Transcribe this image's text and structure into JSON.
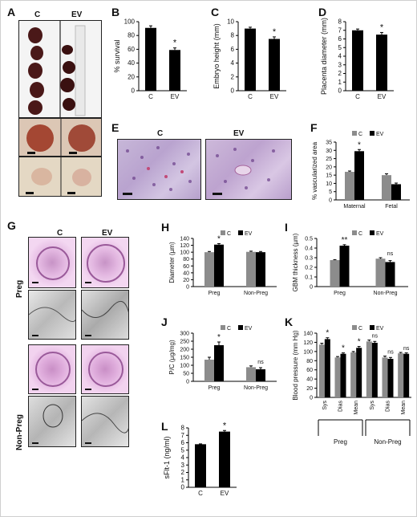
{
  "panels": {
    "A": {
      "label": "A",
      "col_c": "C",
      "col_ev": "EV"
    },
    "B": {
      "label": "B"
    },
    "C": {
      "label": "C"
    },
    "D": {
      "label": "D"
    },
    "E": {
      "label": "E",
      "col_c": "C",
      "col_ev": "EV"
    },
    "F": {
      "label": "F"
    },
    "G": {
      "label": "G",
      "col_c": "C",
      "col_ev": "EV",
      "row_preg": "Preg",
      "row_nonpreg": "Non-Preg"
    },
    "H": {
      "label": "H"
    },
    "I": {
      "label": "I"
    },
    "J": {
      "label": "J"
    },
    "K": {
      "label": "K"
    },
    "L": {
      "label": "L"
    }
  },
  "colors": {
    "C": "#8c8c8c",
    "EV": "#000000",
    "black": "#000000"
  },
  "chart_data": [
    {
      "id": "B",
      "type": "bar",
      "ylabel": "% survival",
      "categories": [
        "C",
        "EV"
      ],
      "values": [
        91,
        59
      ],
      "errors": [
        3,
        3
      ],
      "ylim": [
        0,
        100
      ],
      "yticks": [
        0,
        20,
        40,
        60,
        80,
        100
      ],
      "stars": [
        "",
        "*"
      ],
      "bar_colors": [
        "#000000",
        "#000000"
      ]
    },
    {
      "id": "C",
      "type": "bar",
      "ylabel": "Embryo height (mm)",
      "categories": [
        "C",
        "EV"
      ],
      "values": [
        9.0,
        7.5
      ],
      "errors": [
        0.2,
        0.3
      ],
      "ylim": [
        0,
        10
      ],
      "yticks": [
        0,
        2,
        4,
        6,
        8,
        10
      ],
      "stars": [
        "",
        "*"
      ],
      "bar_colors": [
        "#000000",
        "#000000"
      ]
    },
    {
      "id": "D",
      "type": "bar",
      "ylabel": "Placenta diameter (mm)",
      "categories": [
        "C",
        "EV"
      ],
      "values": [
        7.0,
        6.5
      ],
      "errors": [
        0.15,
        0.25
      ],
      "ylim": [
        0,
        8
      ],
      "yticks": [
        0,
        1,
        2,
        3,
        4,
        5,
        6,
        7,
        8
      ],
      "stars": [
        "",
        "*"
      ],
      "bar_colors": [
        "#000000",
        "#000000"
      ]
    },
    {
      "id": "F",
      "type": "bar",
      "ylabel": "% vascularized area",
      "categories": [
        "Maternal",
        "Fetal"
      ],
      "legend": [
        "C",
        "EV"
      ],
      "series": [
        {
          "name": "C",
          "values": [
            17,
            15
          ],
          "errors": [
            0.5,
            0.8
          ]
        },
        {
          "name": "EV",
          "values": [
            29.5,
            9.5
          ],
          "errors": [
            1,
            0.7
          ]
        }
      ],
      "ylim": [
        0,
        35
      ],
      "yticks": [
        0,
        5,
        10,
        15,
        20,
        25,
        30,
        35
      ],
      "stars": [
        "*",
        ""
      ]
    },
    {
      "id": "H",
      "type": "bar",
      "ylabel": "Diameter (µm)",
      "categories": [
        "Preg",
        "Non-Preg"
      ],
      "legend": [
        "C",
        "EV"
      ],
      "series": [
        {
          "name": "C",
          "values": [
            100,
            101
          ],
          "errors": [
            2,
            2
          ]
        },
        {
          "name": "EV",
          "values": [
            122,
            100
          ],
          "errors": [
            3,
            2
          ]
        }
      ],
      "ylim": [
        0,
        140
      ],
      "yticks": [
        0,
        20,
        40,
        60,
        80,
        100,
        120,
        140
      ],
      "stars": [
        "*",
        ""
      ]
    },
    {
      "id": "I",
      "type": "bar",
      "ylabel": "GBM thickness (µm)",
      "categories": [
        "Preg",
        "Non-Preg"
      ],
      "legend": [
        "C",
        "EV"
      ],
      "series": [
        {
          "name": "C",
          "values": [
            0.275,
            0.29
          ],
          "errors": [
            0.005,
            0.01
          ]
        },
        {
          "name": "EV",
          "values": [
            0.425,
            0.255
          ],
          "errors": [
            0.01,
            0.015
          ]
        }
      ],
      "ylim": [
        0,
        0.5
      ],
      "yticks": [
        0,
        0.1,
        0.2,
        0.3,
        0.4,
        0.5
      ],
      "stars": [
        "**",
        "ns"
      ]
    },
    {
      "id": "J",
      "type": "bar",
      "ylabel": "P/C (µg/mg)",
      "categories": [
        "Preg",
        "Non-Preg"
      ],
      "legend": [
        "C",
        "EV"
      ],
      "series": [
        {
          "name": "C",
          "values": [
            135,
            88
          ],
          "errors": [
            15,
            8
          ]
        },
        {
          "name": "EV",
          "values": [
            225,
            75
          ],
          "errors": [
            20,
            10
          ]
        }
      ],
      "ylim": [
        0,
        300
      ],
      "yticks": [
        0,
        50,
        100,
        150,
        200,
        250,
        300
      ],
      "stars": [
        "*",
        "ns"
      ]
    },
    {
      "id": "K",
      "type": "bar",
      "ylabel": "Blood pressure (mm Hg)",
      "categories": [
        "Sys",
        "Dias",
        "Mean",
        "Sys",
        "Dias",
        "Mean"
      ],
      "groups": [
        "Preg",
        "Non-Preg"
      ],
      "legend": [
        "C",
        "EV"
      ],
      "series": [
        {
          "name": "C",
          "values": [
            115,
            87,
            98,
            122,
            87,
            96
          ],
          "errors": [
            3,
            2,
            2,
            3,
            3,
            2
          ]
        },
        {
          "name": "EV",
          "values": [
            127,
            95,
            108,
            119,
            84,
            95
          ],
          "errors": [
            3,
            2,
            3,
            3,
            3,
            2
          ]
        }
      ],
      "ylim": [
        0,
        140
      ],
      "yticks": [
        0,
        20,
        40,
        60,
        80,
        100,
        120,
        140
      ],
      "stars": [
        "*",
        "*",
        "*",
        "ns",
        "ns",
        "ns"
      ]
    },
    {
      "id": "L",
      "type": "bar",
      "ylabel": "sFlt-1 (ng/ml)",
      "categories": [
        "C",
        "EV"
      ],
      "values": [
        5.8,
        7.5
      ],
      "errors": [
        0.05,
        0.15
      ],
      "ylim": [
        0,
        8
      ],
      "yticks": [
        0,
        1,
        2,
        3,
        4,
        5,
        6,
        7,
        8
      ],
      "stars": [
        "",
        "*"
      ],
      "bar_colors": [
        "#000000",
        "#000000"
      ]
    }
  ]
}
